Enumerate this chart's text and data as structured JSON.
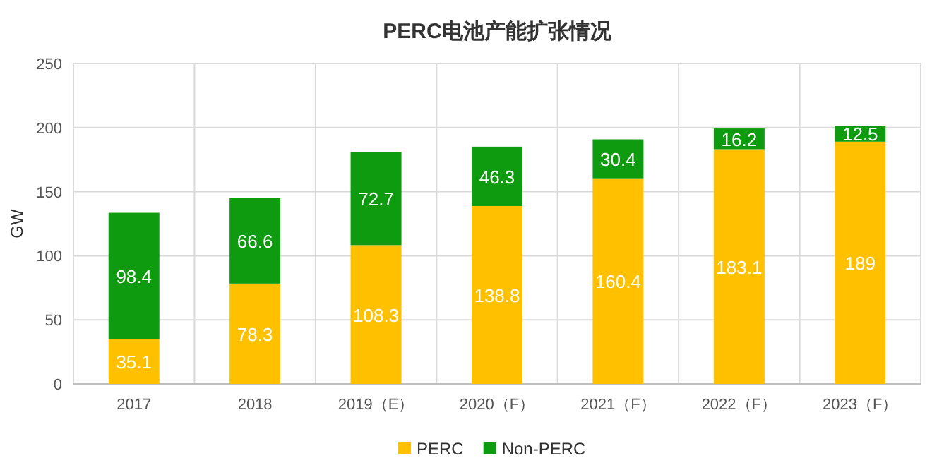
{
  "chart_data": {
    "type": "bar",
    "title": "PERC电池产能扩张情况",
    "ylabel": "GW",
    "categories": [
      "2017",
      "2018",
      "2019（E）",
      "2020（F）",
      "2021（F）",
      "2022（F）",
      "2023（F）"
    ],
    "stacked": true,
    "series": [
      {
        "name": "PERC",
        "color": "#ffc000",
        "values": [
          35.1,
          78.3,
          108.3,
          138.8,
          160.4,
          183.1,
          189
        ]
      },
      {
        "name": "Non-PERC",
        "color": "#0f9b0f",
        "values": [
          98.4,
          66.6,
          72.7,
          46.3,
          30.4,
          16.2,
          12.5
        ]
      }
    ],
    "ylim": [
      0,
      250
    ],
    "yticks": [
      0,
      50,
      100,
      150,
      200,
      250
    ],
    "grid": true,
    "legend": "bottom",
    "data_labels": true
  }
}
